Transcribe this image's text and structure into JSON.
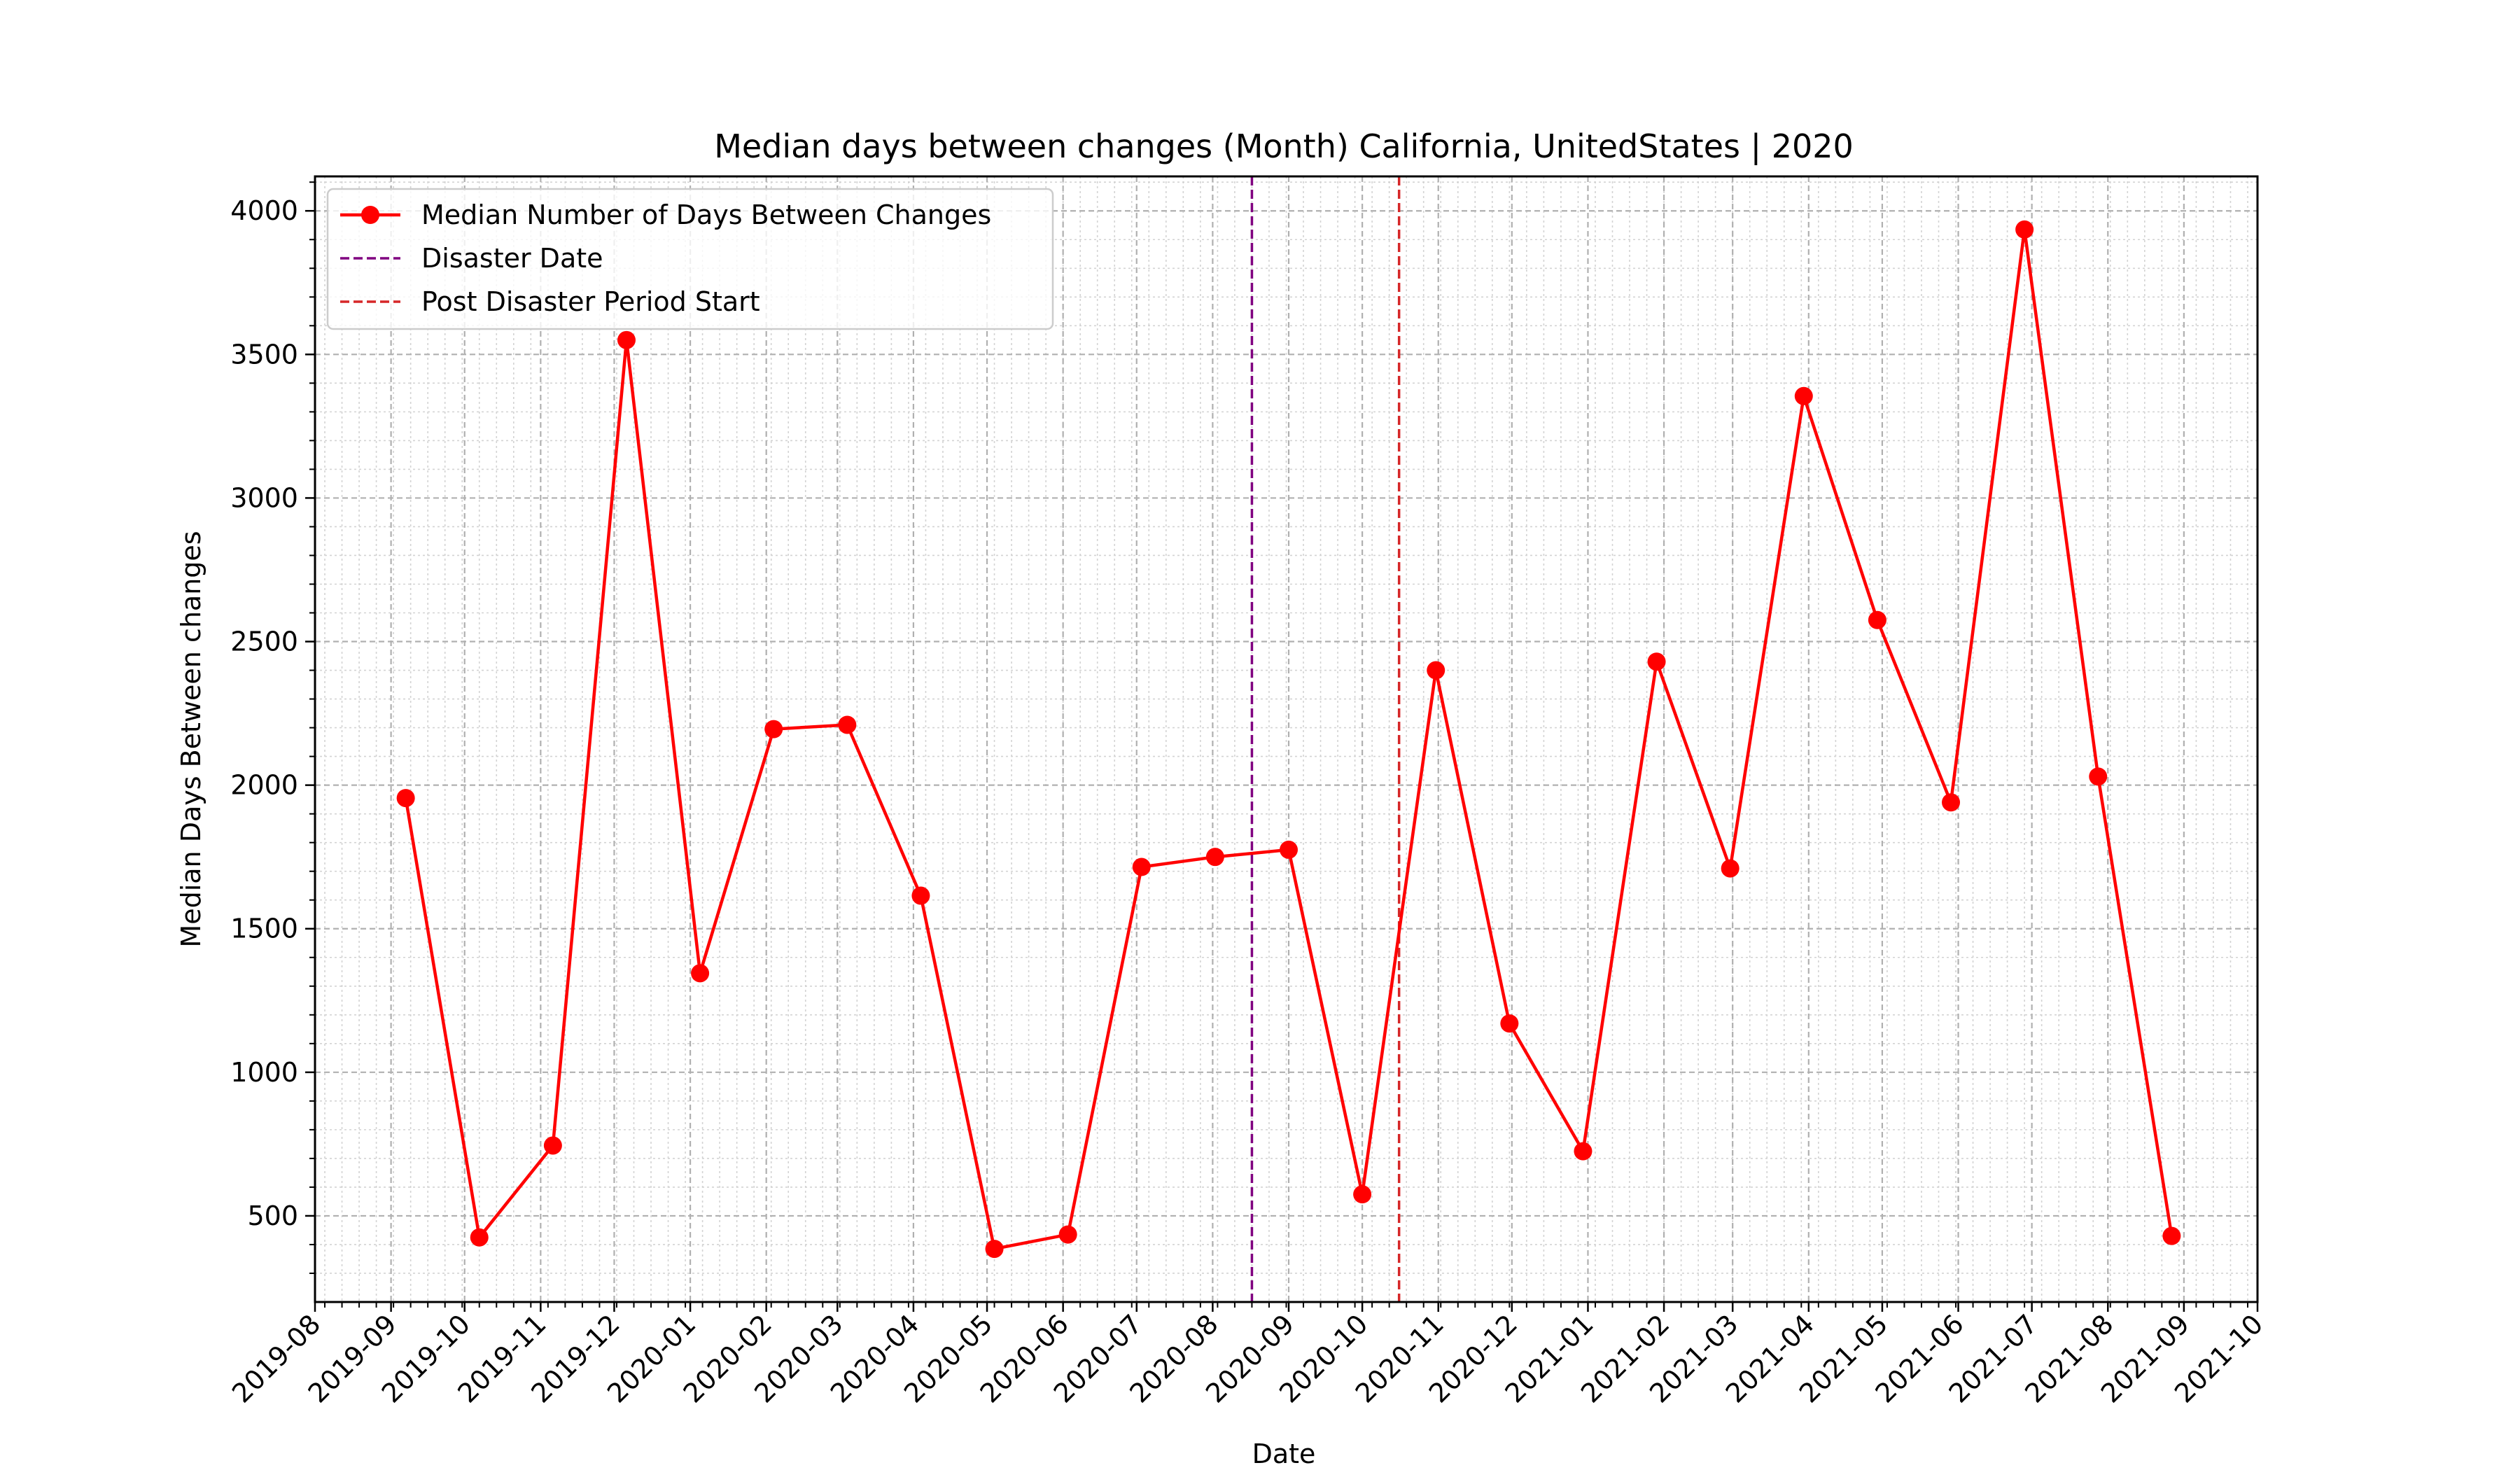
{
  "chart_data": {
    "type": "line",
    "title": "Median days between changes (Month) California, UnitedStates | 2020",
    "xlabel": "Date",
    "ylabel": "Median Days Between changes",
    "xlim": [
      "2019-08-01",
      "2021-10-01"
    ],
    "ylim": [
      200,
      4120
    ],
    "x_ticks": [
      "2019-08",
      "2019-09",
      "2019-10",
      "2019-11",
      "2019-12",
      "2020-01",
      "2020-02",
      "2020-03",
      "2020-04",
      "2020-05",
      "2020-06",
      "2020-07",
      "2020-08",
      "2020-09",
      "2020-10",
      "2020-11",
      "2020-12",
      "2021-01",
      "2021-02",
      "2021-03",
      "2021-04",
      "2021-05",
      "2021-06",
      "2021-07",
      "2021-08",
      "2021-09",
      "2021-10"
    ],
    "y_ticks": [
      500,
      1000,
      1500,
      2000,
      2500,
      3000,
      3500,
      4000
    ],
    "grid": true,
    "legend_position": "upper-left",
    "series": [
      {
        "name": "Median Number of Days Between Changes",
        "color": "#ff0000",
        "marker": "circle",
        "x": [
          "2019-09-07",
          "2019-10-07",
          "2019-11-06",
          "2019-12-06",
          "2020-01-05",
          "2020-02-04",
          "2020-03-05",
          "2020-04-04",
          "2020-05-04",
          "2020-06-03",
          "2020-07-03",
          "2020-08-02",
          "2020-09-01",
          "2020-10-01",
          "2020-10-31",
          "2020-11-30",
          "2020-12-30",
          "2021-01-29",
          "2021-02-28",
          "2021-03-30",
          "2021-04-29",
          "2021-05-29",
          "2021-06-28",
          "2021-07-28",
          "2021-08-27"
        ],
        "y": [
          1955,
          425,
          745,
          3550,
          1345,
          2195,
          2210,
          1615,
          385,
          435,
          1715,
          1750,
          1775,
          575,
          2400,
          1170,
          725,
          2430,
          1710,
          3355,
          2575,
          1940,
          3935,
          2030,
          430
        ]
      }
    ],
    "vlines": [
      {
        "name": "Disaster Date",
        "x": "2020-08-17",
        "color": "#800080",
        "style": "dashed"
      },
      {
        "name": "Post Disaster Period Start",
        "x": "2020-10-16",
        "color": "#d62728",
        "style": "dashed"
      }
    ]
  }
}
